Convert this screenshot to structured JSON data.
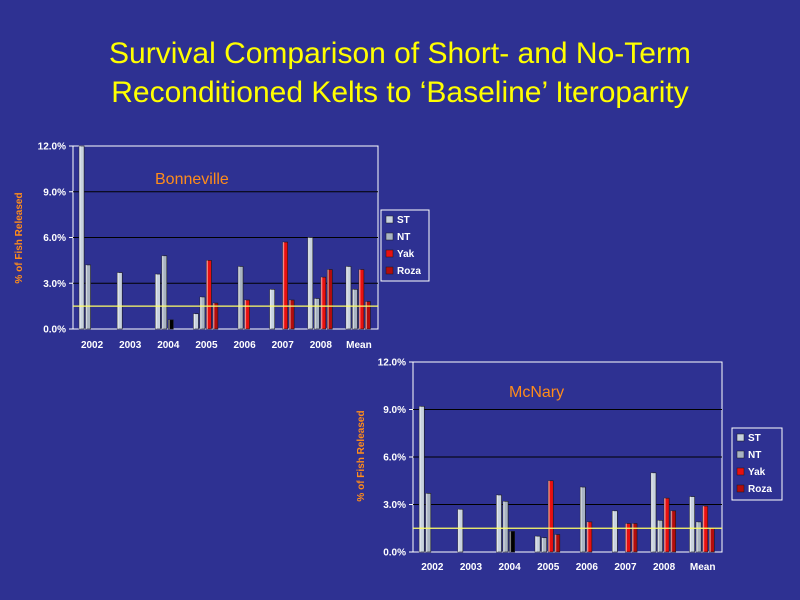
{
  "slide": {
    "title_line1": "Survival Comparison of Short- and No-Term",
    "title_line2": "Reconditioned Kelts to ‘Baseline’ Iteroparity"
  },
  "colors": {
    "background": "#2e3192",
    "title": "#ffff00",
    "plot_area": "#2e3192",
    "ST": "#c8d2de",
    "NT": "#a9b4c2",
    "Yak": "#e81010",
    "Roza": "#b30c0c",
    "black_bar": "#000000",
    "baseline": "#ffff66",
    "ylabel": "#ff8c1a",
    "ticks": "#ffffff",
    "chart_label": "#ff8c1a"
  },
  "chart_data": [
    {
      "type": "bar",
      "label": "Bonneville",
      "ylabel": "% of Fish Released",
      "ylim": [
        0,
        12
      ],
      "yticks": [
        "0.0%",
        "3.0%",
        "6.0%",
        "9.0%",
        "12.0%"
      ],
      "grid": true,
      "legend": "right",
      "categories": [
        "2002",
        "2003",
        "2004",
        "2005",
        "2006",
        "2007",
        "2008",
        "Mean"
      ],
      "baseline": 1.5,
      "series": [
        {
          "name": "ST",
          "values": [
            12.0,
            3.7,
            3.6,
            1.0,
            null,
            2.6,
            6.0,
            4.1
          ]
        },
        {
          "name": "NT",
          "values": [
            4.2,
            null,
            4.8,
            2.1,
            4.1,
            null,
            2.0,
            2.6
          ]
        },
        {
          "name": "Yak",
          "values": [
            null,
            null,
            0.6,
            4.5,
            1.9,
            5.7,
            3.4,
            3.9
          ]
        },
        {
          "name": "Roza",
          "values": [
            null,
            null,
            null,
            1.7,
            null,
            1.9,
            3.9,
            1.8
          ]
        }
      ],
      "black_series_point": {
        "category": "2004",
        "series": "Yak"
      }
    },
    {
      "type": "bar",
      "label": "McNary",
      "ylabel": "% of Fish Released",
      "ylim": [
        0,
        12
      ],
      "yticks": [
        "0.0%",
        "3.0%",
        "6.0%",
        "9.0%",
        "12.0%"
      ],
      "grid": true,
      "legend": "right",
      "categories": [
        "2002",
        "2003",
        "2004",
        "2005",
        "2006",
        "2007",
        "2008",
        "Mean"
      ],
      "baseline": 1.5,
      "series": [
        {
          "name": "ST",
          "values": [
            9.2,
            2.7,
            3.6,
            1.0,
            null,
            2.6,
            5.0,
            3.5
          ]
        },
        {
          "name": "NT",
          "values": [
            3.7,
            null,
            3.2,
            0.9,
            4.1,
            null,
            2.0,
            1.9
          ]
        },
        {
          "name": "Yak",
          "values": [
            null,
            null,
            1.3,
            4.5,
            1.9,
            1.8,
            3.4,
            2.9
          ]
        },
        {
          "name": "Roza",
          "values": [
            null,
            null,
            null,
            1.1,
            null,
            1.8,
            2.6,
            1.5
          ]
        }
      ],
      "black_series_point": {
        "category": "2004",
        "series": "Yak"
      }
    }
  ]
}
